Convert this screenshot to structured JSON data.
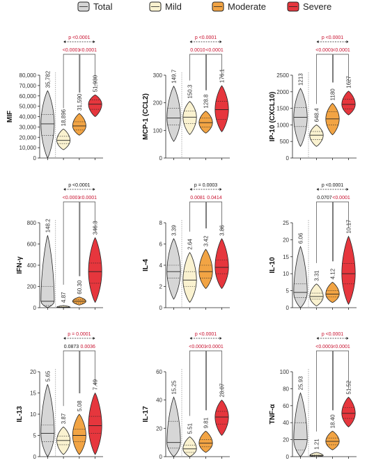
{
  "legend": [
    {
      "label": "Total",
      "color": "#d6d6d6"
    },
    {
      "label": "Mild",
      "color": "#faf2d0"
    },
    {
      "label": "Moderate",
      "color": "#f2a444"
    },
    {
      "label": "Severe",
      "color": "#e6363d"
    }
  ],
  "sig_colors": {
    "black": "#111111",
    "red": "#c8102e"
  },
  "chart_data": [
    {
      "type": "violin",
      "ylabel": "MIF",
      "ylim": [
        0,
        80000
      ],
      "yticks": [
        "0",
        "10,000",
        "20,000",
        "30,000",
        "40,000",
        "50,000",
        "60,000",
        "70,000",
        "80,000"
      ],
      "groups": [
        {
          "name": "Total",
          "label": "35,782",
          "median": 33000,
          "q1": 22000,
          "q3": 42000,
          "min": 0,
          "max": 65000
        },
        {
          "name": "Mild",
          "label": "18,896",
          "median": 17000,
          "q1": 14000,
          "q3": 21000,
          "min": 8000,
          "max": 28000
        },
        {
          "name": "Moderate",
          "label": "31,590",
          "median": 31000,
          "q1": 27000,
          "q3": 35000,
          "min": 22000,
          "max": 43000
        },
        {
          "name": "Severe",
          "label": "51,930",
          "median": 52000,
          "q1": 47000,
          "q3": 56000,
          "min": 40000,
          "max": 61000
        }
      ],
      "sig": {
        "top": "p <0.0001",
        "top_color": "red",
        "left": "<0.0001",
        "right": "<0.0001",
        "pair_color": "red"
      }
    },
    {
      "type": "violin",
      "ylabel": "MCP-1 (CCL2)",
      "ylim": [
        0,
        300
      ],
      "yticks": [
        "0",
        "100",
        "200",
        "300"
      ],
      "groups": [
        {
          "name": "Total",
          "label": "149.7",
          "median": 145,
          "q1": 120,
          "q3": 180,
          "min": 60,
          "max": 260
        },
        {
          "name": "Mild",
          "label": "150.3",
          "median": 148,
          "q1": 125,
          "q3": 170,
          "min": 85,
          "max": 205
        },
        {
          "name": "Moderate",
          "label": "128.8",
          "median": 128,
          "q1": 112,
          "q3": 145,
          "min": 90,
          "max": 170
        },
        {
          "name": "Severe",
          "label": "176.1",
          "median": 175,
          "q1": 140,
          "q3": 205,
          "min": 95,
          "max": 262
        }
      ],
      "sig": {
        "top": "p <0.0001",
        "top_color": "red",
        "left": "0.0010",
        "right": "<0.0001",
        "pair_color": "red"
      }
    },
    {
      "type": "violin",
      "ylabel": "IP-10 (CXCL10)",
      "ylim": [
        0,
        2500
      ],
      "yticks": [
        "0",
        "500",
        "1000",
        "1500",
        "2000",
        "2500"
      ],
      "groups": [
        {
          "name": "Total",
          "label": "1213",
          "median": 1230,
          "q1": 950,
          "q3": 1520,
          "min": 350,
          "max": 2100
        },
        {
          "name": "Mild",
          "label": "648.4",
          "median": 690,
          "q1": 560,
          "q3": 800,
          "min": 350,
          "max": 1000
        },
        {
          "name": "Moderate",
          "label": "1180",
          "median": 1180,
          "q1": 1000,
          "q3": 1400,
          "min": 700,
          "max": 1650
        },
        {
          "name": "Severe",
          "label": "1627",
          "median": 1620,
          "q1": 1480,
          "q3": 1780,
          "min": 1300,
          "max": 2020
        }
      ],
      "sig": {
        "top": "p <0.0001",
        "top_color": "red",
        "left": "<0.0001",
        "right": "<0.0001",
        "pair_color": "red"
      }
    },
    {
      "type": "violin",
      "ylabel": "IFN-γ",
      "ylim": [
        0,
        800
      ],
      "yticks": [
        "0",
        "200",
        "400",
        "600",
        "800"
      ],
      "groups": [
        {
          "name": "Total",
          "label": "148.2",
          "median": 60,
          "q1": 20,
          "q3": 200,
          "min": 0,
          "max": 680
        },
        {
          "name": "Mild",
          "label": "4.87",
          "median": 4,
          "q1": 2,
          "q3": 8,
          "min": 0,
          "max": 20
        },
        {
          "name": "Moderate",
          "label": "60.30",
          "median": 60,
          "q1": 45,
          "q3": 75,
          "min": 25,
          "max": 100
        },
        {
          "name": "Severe",
          "label": "346.3",
          "median": 340,
          "q1": 230,
          "q3": 420,
          "min": 50,
          "max": 660
        }
      ],
      "sig": {
        "top": "p <0.0001",
        "top_color": "black",
        "left": "<0.0001",
        "right": "<0.0001",
        "pair_color": "red"
      }
    },
    {
      "type": "violin",
      "ylabel": "IL-4",
      "ylim": [
        0,
        8
      ],
      "yticks": [
        "0",
        "2",
        "4",
        "6",
        "8"
      ],
      "groups": [
        {
          "name": "Total",
          "label": "3.39",
          "median": 3.4,
          "q1": 2.8,
          "q3": 4.0,
          "min": 0.8,
          "max": 6.5
        },
        {
          "name": "Mild",
          "label": "2.64",
          "median": 2.6,
          "q1": 2.0,
          "q3": 3.4,
          "min": 0.5,
          "max": 5.2
        },
        {
          "name": "Moderate",
          "label": "3.42",
          "median": 3.4,
          "q1": 2.8,
          "q3": 4.0,
          "min": 1.8,
          "max": 5.5
        },
        {
          "name": "Severe",
          "label": "3.86",
          "median": 3.8,
          "q1": 3.2,
          "q3": 4.5,
          "min": 1.8,
          "max": 6.5
        }
      ],
      "sig": {
        "top": "p = 0.0003",
        "top_color": "black",
        "left": "0.0081",
        "right": "0.0414",
        "pair_color": "red"
      }
    },
    {
      "type": "violin",
      "ylabel": "IL-10",
      "ylim": [
        0,
        25
      ],
      "yticks": [
        "0",
        "5",
        "10",
        "15",
        "20",
        "25"
      ],
      "groups": [
        {
          "name": "Total",
          "label": "6.06",
          "median": 4.5,
          "q1": 3.0,
          "q3": 7.0,
          "min": 0,
          "max": 18
        },
        {
          "name": "Mild",
          "label": "3.31",
          "median": 3.3,
          "q1": 2.5,
          "q3": 4.3,
          "min": 0.5,
          "max": 7
        },
        {
          "name": "Moderate",
          "label": "4.12",
          "median": 4.0,
          "q1": 3.2,
          "q3": 5.0,
          "min": 1.5,
          "max": 7.5
        },
        {
          "name": "Severe",
          "label": "10.17",
          "median": 10,
          "q1": 7,
          "q3": 13,
          "min": 1,
          "max": 21
        }
      ],
      "sig": {
        "top": "p <0.0001",
        "top_color": "black",
        "left": "0.0707",
        "right": "<0.0001",
        "pair_color": "black",
        "right_color": "red"
      }
    },
    {
      "type": "violin",
      "ylabel": "IL-13",
      "ylim": [
        0,
        20
      ],
      "yticks": [
        "0",
        "5",
        "10",
        "15",
        "20"
      ],
      "groups": [
        {
          "name": "Total",
          "label": "5.65",
          "median": 5.5,
          "q1": 3.5,
          "q3": 7.5,
          "min": 0,
          "max": 17
        },
        {
          "name": "Mild",
          "label": "3.87",
          "median": 3.8,
          "q1": 2.8,
          "q3": 4.8,
          "min": 0.5,
          "max": 7
        },
        {
          "name": "Moderate",
          "label": "5.08",
          "median": 5.0,
          "q1": 3.5,
          "q3": 6.5,
          "min": 0.5,
          "max": 10
        },
        {
          "name": "Severe",
          "label": "7.49",
          "median": 7.3,
          "q1": 5.5,
          "q3": 9.5,
          "min": 0.5,
          "max": 15
        }
      ],
      "sig": {
        "top": "p = 0.0001",
        "top_color": "red",
        "left": "0.0873",
        "right": "0.0036",
        "pair_color": "black",
        "right_color": "red"
      }
    },
    {
      "type": "violin",
      "ylabel": "IL-17",
      "ylim": [
        0,
        60
      ],
      "yticks": [
        "0",
        "20",
        "40",
        "60"
      ],
      "groups": [
        {
          "name": "Total",
          "label": "15.25",
          "median": 10,
          "q1": 6,
          "q3": 25,
          "min": 0,
          "max": 42
        },
        {
          "name": "Mild",
          "label": "5.51",
          "median": 5.5,
          "q1": 3,
          "q3": 8,
          "min": 0,
          "max": 14
        },
        {
          "name": "Moderate",
          "label": "9.81",
          "median": 9.5,
          "q1": 7,
          "q3": 12,
          "min": 3,
          "max": 18
        },
        {
          "name": "Severe",
          "label": "28.07",
          "median": 28,
          "q1": 23,
          "q3": 32,
          "min": 15,
          "max": 40
        }
      ],
      "sig": {
        "top": "p <0.0001",
        "top_color": "red",
        "left": "<0.0001",
        "right": "<0.0001",
        "pair_color": "red"
      }
    },
    {
      "type": "violin",
      "ylabel": "TNF-α",
      "ylim": [
        0,
        100
      ],
      "yticks": [
        "0",
        "20",
        "40",
        "60",
        "80",
        "100"
      ],
      "groups": [
        {
          "name": "Total",
          "label": "25.93",
          "median": 20,
          "q1": 8,
          "q3": 40,
          "min": 0,
          "max": 75
        },
        {
          "name": "Mild",
          "label": "1.21",
          "median": 1.2,
          "q1": 0.5,
          "q3": 2,
          "min": 0,
          "max": 5
        },
        {
          "name": "Moderate",
          "label": "18.40",
          "median": 18,
          "q1": 14,
          "q3": 22,
          "min": 8,
          "max": 30
        },
        {
          "name": "Severe",
          "label": "51.52",
          "median": 51,
          "q1": 45,
          "q3": 58,
          "min": 35,
          "max": 70
        }
      ],
      "sig": {
        "top": "p <0.0001",
        "top_color": "red",
        "left": "<0.0001",
        "right": "<0.0001",
        "pair_color": "red"
      }
    }
  ]
}
